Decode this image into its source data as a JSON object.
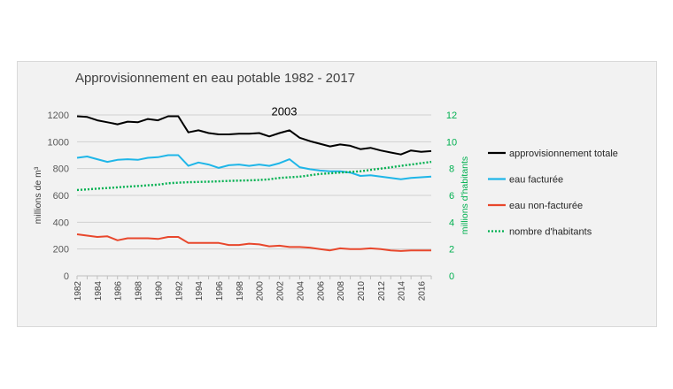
{
  "chart_data": {
    "type": "line",
    "title": "Approvisionnement en eau potable 1982 - 2017",
    "ylabel": "millions de m³",
    "y2label": "millions d'habitants",
    "ylim": [
      0,
      1200
    ],
    "y2lim": [
      0,
      12
    ],
    "yticks": [
      "0",
      "200",
      "400",
      "600",
      "800",
      "1000",
      "1200"
    ],
    "y2ticks": [
      "0",
      "2",
      "4",
      "6",
      "8",
      "10",
      "12"
    ],
    "x": [
      1982,
      1983,
      1984,
      1985,
      1986,
      1987,
      1988,
      1989,
      1990,
      1991,
      1992,
      1993,
      1994,
      1995,
      1996,
      1997,
      1998,
      1999,
      2000,
      2001,
      2002,
      2003,
      2004,
      2005,
      2006,
      2007,
      2008,
      2009,
      2010,
      2011,
      2012,
      2013,
      2014,
      2015,
      2016,
      2017
    ],
    "xticks": [
      "1982",
      "1984",
      "1986",
      "1988",
      "1990",
      "1992",
      "1994",
      "1996",
      "1998",
      "2000",
      "2002",
      "2004",
      "2006",
      "2008",
      "2010",
      "2012",
      "2014",
      "2016"
    ],
    "annotation": {
      "text": "2003",
      "x": 2003,
      "y": 1090
    },
    "series": [
      {
        "name": "approvisionnement totale",
        "axis": "left",
        "color": "#000000",
        "style": "solid",
        "values": [
          1190,
          1185,
          1160,
          1145,
          1130,
          1150,
          1145,
          1170,
          1160,
          1190,
          1190,
          1070,
          1085,
          1065,
          1055,
          1055,
          1060,
          1060,
          1065,
          1040,
          1065,
          1085,
          1030,
          1005,
          985,
          965,
          980,
          970,
          945,
          955,
          935,
          920,
          905,
          935,
          925,
          930
        ]
      },
      {
        "name": "eau facturée",
        "axis": "left",
        "color": "#1fb6e8",
        "style": "solid",
        "values": [
          880,
          890,
          870,
          850,
          865,
          870,
          865,
          880,
          885,
          900,
          900,
          820,
          845,
          830,
          805,
          825,
          830,
          820,
          830,
          820,
          840,
          870,
          810,
          795,
          785,
          780,
          780,
          770,
          745,
          750,
          740,
          730,
          720,
          730,
          735,
          740
        ]
      },
      {
        "name": "eau non-facturée",
        "axis": "left",
        "color": "#e8472c",
        "style": "solid",
        "values": [
          310,
          300,
          290,
          295,
          265,
          280,
          280,
          280,
          275,
          290,
          290,
          245,
          245,
          245,
          245,
          230,
          230,
          240,
          235,
          220,
          225,
          215,
          215,
          210,
          200,
          190,
          205,
          200,
          200,
          205,
          200,
          190,
          185,
          190,
          190,
          190
        ]
      },
      {
        "name": "nombre d'habitants",
        "axis": "right",
        "color": "#00b050",
        "style": "dotted",
        "values": [
          6.4,
          6.45,
          6.5,
          6.55,
          6.6,
          6.65,
          6.7,
          6.75,
          6.8,
          6.9,
          6.95,
          6.98,
          7.0,
          7.02,
          7.05,
          7.08,
          7.1,
          7.12,
          7.15,
          7.2,
          7.3,
          7.35,
          7.4,
          7.5,
          7.6,
          7.65,
          7.7,
          7.75,
          7.8,
          7.9,
          8.0,
          8.1,
          8.2,
          8.3,
          8.4,
          8.5
        ]
      }
    ],
    "legend_position": "right"
  }
}
